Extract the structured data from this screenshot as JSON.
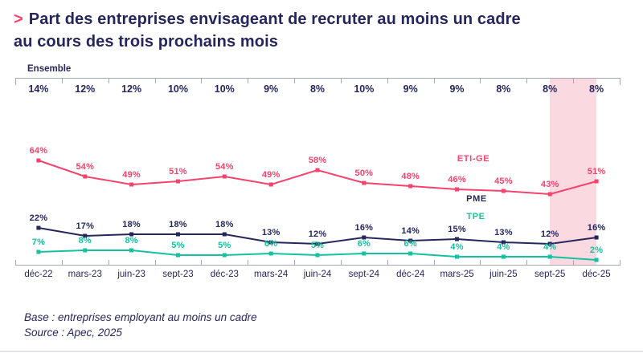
{
  "title": {
    "marker": ">",
    "line1": "Part des entreprises envisageant de recruter au moins un cadre",
    "line2": "au cours des trois prochains mois"
  },
  "chart_data": {
    "type": "line",
    "title": "Part des entreprises envisageant de recruter au moins un cadre au cours des trois prochains mois",
    "categories": [
      "déc-22",
      "mars-23",
      "juin-23",
      "sept-23",
      "déc-23",
      "mars-24",
      "juin-24",
      "sept-24",
      "déc-24",
      "mars-25",
      "juin-25",
      "sept-25",
      "déc-25"
    ],
    "ensemble_label": "Ensemble",
    "ensemble_values": [
      "14%",
      "12%",
      "12%",
      "10%",
      "10%",
      "9%",
      "8%",
      "10%",
      "9%",
      "9%",
      "8%",
      "8%",
      "8%"
    ],
    "series": [
      {
        "name": "ETI-GE",
        "color": "#F4436C",
        "values": [
          64,
          54,
          49,
          51,
          54,
          49,
          58,
          50,
          48,
          46,
          45,
          43,
          51
        ]
      },
      {
        "name": "PME",
        "color": "#26265C",
        "values": [
          22,
          17,
          18,
          18,
          18,
          13,
          12,
          16,
          14,
          15,
          13,
          12,
          16
        ]
      },
      {
        "name": "TPE",
        "color": "#14C2A0",
        "values": [
          7,
          8,
          8,
          5,
          5,
          6,
          5,
          6,
          6,
          4,
          4,
          4,
          2
        ]
      }
    ],
    "unit": "%",
    "ylim": [
      0,
      70
    ],
    "grid": false,
    "legend_position": "inline-right",
    "highlight": {
      "from": "sept-25",
      "to": "déc-25",
      "color": "#FBD9E1"
    }
  },
  "footer": {
    "base": "Base : entreprises employant au moins un cadre",
    "source": "Source : Apec, 2025"
  },
  "colors": {
    "navy": "#26265C",
    "pink": "#F4436C",
    "teal": "#14C2A0",
    "band": "#FBD9E1",
    "axis": "#A4A6B9"
  }
}
